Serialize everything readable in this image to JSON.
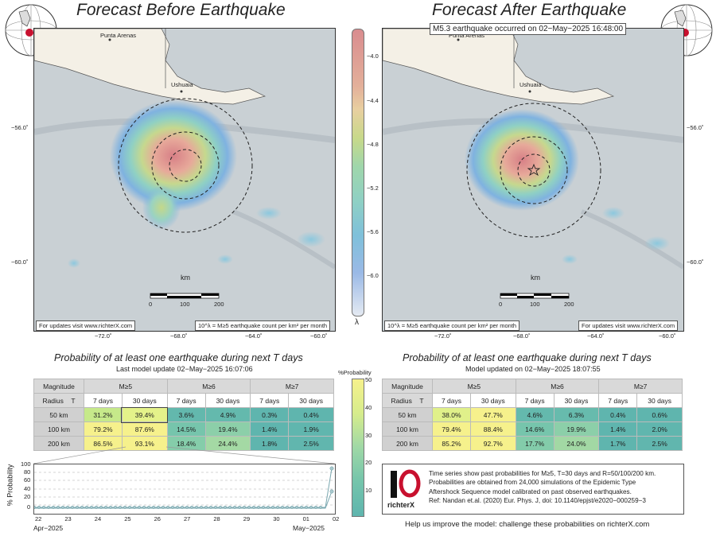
{
  "titles": {
    "before": "Forecast Before Earthquake",
    "after": "Forecast After Earthquake",
    "event_note": "M5.3 earthquake occurred on 02−May−2025 16:48:00"
  },
  "map_labels": {
    "punta_arenas": "Punta Arenas",
    "ushuaia": "Ushuaia",
    "lat_56": "−56.0˚",
    "lat_60": "−60.0˚",
    "lon_72": "−72.0˚",
    "lon_68": "−68.0˚",
    "lon_64": "−64.0˚",
    "lon_60": "−60.0˚",
    "scale_unit": "km",
    "scale_ticks": [
      "0",
      "100",
      "200"
    ],
    "updates_note": "For updates visit www.richterX.com",
    "units_note": "10^λ = M≥5 earthquake count per km² per month"
  },
  "lambda_colorbar": {
    "symbol": "λ",
    "ticks": [
      "−4.0",
      "−4.4",
      "−4.8",
      "−5.2",
      "−5.6",
      "−6.0"
    ]
  },
  "probability_colorbar": {
    "title": "%Probability",
    "ticks": [
      "50",
      "40",
      "30",
      "20",
      "10"
    ]
  },
  "left_table": {
    "title": "Probability of at least one earthquake during next T days",
    "update": "Last model update 02−May−2025 16:07:06",
    "header_mag": "Magnitude",
    "header_radius": "Radius",
    "header_T": "T",
    "mags": [
      "M≥5",
      "M≥6",
      "M≥7"
    ],
    "periods": [
      "7 days",
      "30 days"
    ],
    "rows": [
      {
        "radius": "50 km",
        "values": [
          "31.2%",
          "39.4%",
          "3.6%",
          "4.9%",
          "0.3%",
          "0.4%"
        ]
      },
      {
        "radius": "100 km",
        "values": [
          "79.2%",
          "87.6%",
          "14.5%",
          "19.4%",
          "1.4%",
          "1.9%"
        ]
      },
      {
        "radius": "200 km",
        "values": [
          "86.5%",
          "93.1%",
          "18.4%",
          "24.4%",
          "1.8%",
          "2.5%"
        ]
      }
    ]
  },
  "right_table": {
    "title": "Probability of at least one earthquake during next T days",
    "update": "Model updated on 02−May−2025 18:07:55",
    "header_mag": "Magnitude",
    "header_radius": "Radius",
    "header_T": "T",
    "mags": [
      "M≥5",
      "M≥6",
      "M≥7"
    ],
    "periods": [
      "7 days",
      "30 days"
    ],
    "rows": [
      {
        "radius": "50 km",
        "values": [
          "38.0%",
          "47.7%",
          "4.6%",
          "6.3%",
          "0.4%",
          "0.6%"
        ]
      },
      {
        "radius": "100 km",
        "values": [
          "79.4%",
          "88.4%",
          "14.6%",
          "19.9%",
          "1.4%",
          "2.0%"
        ]
      },
      {
        "radius": "200 km",
        "values": [
          "85.2%",
          "92.7%",
          "17.7%",
          "24.0%",
          "1.7%",
          "2.5%"
        ]
      }
    ]
  },
  "timeseries": {
    "ylabel": "% Probability",
    "yticks": [
      "100",
      "80",
      "60",
      "40",
      "20",
      "0"
    ],
    "xticks": [
      "22",
      "23",
      "24",
      "25",
      "26",
      "27",
      "28",
      "29",
      "30",
      "01",
      "02"
    ],
    "month_left": "Apr−2025",
    "month_right": "May−2025"
  },
  "info": {
    "lines": [
      "Time series show past probabilities for M≥5, T=30 days and R=50/100/200 km.",
      "Probabilities are obtained from 24,000 simulations of the Epidemic Type",
      "Aftershock Sequence model calibrated on past observed earthquakes.",
      "Ref: Nandan et.al. (2020) Eur. Phys. J, doi: 10.1140/epjst/e2020−000259−3"
    ],
    "logo_text": "richterX",
    "footer": "Help us improve the model: challenge these probabilities on richterX.com"
  },
  "colors": {
    "ocean": "#c9d0d4",
    "land": "#f4f0e6",
    "hot": "#d98c8f",
    "yellow_cell": "#f6f18c",
    "teal_cell": "#5fb5ae"
  }
}
